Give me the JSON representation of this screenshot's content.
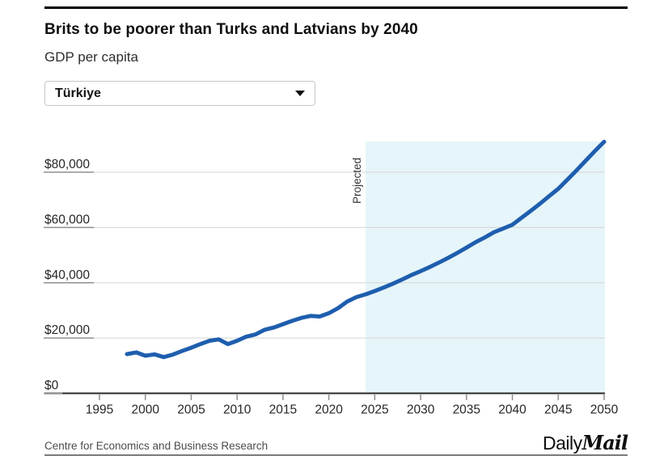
{
  "header": {
    "title": "Brits to be poorer than Turks and Latvians by 2040",
    "subtitle": "GDP per capita"
  },
  "country_selector": {
    "value": "Türkiye"
  },
  "chart_data": {
    "type": "line",
    "title": "Brits to be poorer than Turks and Latvians by 2040",
    "subtitle": "GDP per capita",
    "series_name": "Türkiye",
    "unit": "USD",
    "x": [
      1998,
      1999,
      2000,
      2001,
      2002,
      2003,
      2004,
      2005,
      2006,
      2007,
      2008,
      2009,
      2010,
      2011,
      2012,
      2013,
      2014,
      2015,
      2016,
      2017,
      2018,
      2019,
      2020,
      2021,
      2022,
      2023,
      2024,
      2025,
      2026,
      2027,
      2028,
      2029,
      2030,
      2031,
      2032,
      2033,
      2034,
      2035,
      2036,
      2037,
      2038,
      2039,
      2040,
      2041,
      2042,
      2043,
      2044,
      2045,
      2046,
      2047,
      2048,
      2049,
      2050
    ],
    "values": [
      14200,
      14800,
      13600,
      14100,
      13100,
      14000,
      15300,
      16500,
      17800,
      19000,
      19500,
      17800,
      19000,
      20500,
      21300,
      23000,
      23800,
      25000,
      26200,
      27300,
      28000,
      27800,
      29000,
      30800,
      33200,
      34800,
      35800,
      37000,
      38300,
      39700,
      41200,
      42800,
      44200,
      45700,
      47300,
      49000,
      50800,
      52700,
      54700,
      56400,
      58300,
      59600,
      61000,
      63500,
      66000,
      68600,
      71300,
      74000,
      77300,
      80700,
      84200,
      87700,
      91000
    ],
    "yticks": [
      {
        "value": 0,
        "label": "$0"
      },
      {
        "value": 20000,
        "label": "$20,000"
      },
      {
        "value": 40000,
        "label": "$40,000"
      },
      {
        "value": 60000,
        "label": "$60,000"
      },
      {
        "value": 80000,
        "label": "$80,000"
      }
    ],
    "xticks": [
      "1995",
      "2000",
      "2005",
      "2010",
      "2015",
      "2020",
      "2025",
      "2030",
      "2035",
      "2040",
      "2045",
      "2050"
    ],
    "xlim": [
      1995,
      2050
    ],
    "ylim": [
      0,
      91000
    ],
    "grid": true,
    "legend": "none",
    "projection_start": 2024,
    "projection_label": "Projected",
    "line_color": "#1e5eae",
    "projection_fill": "#e6f5fa",
    "grid_color": "#d5d5d5",
    "axis_color": "#2a2a2a",
    "tick_color": "#8f8f8f",
    "label_color": "#262626"
  },
  "footer": {
    "source": "Centre for Economics and Business Research",
    "brand": {
      "daily": "Daily",
      "mail": "Mail"
    }
  }
}
